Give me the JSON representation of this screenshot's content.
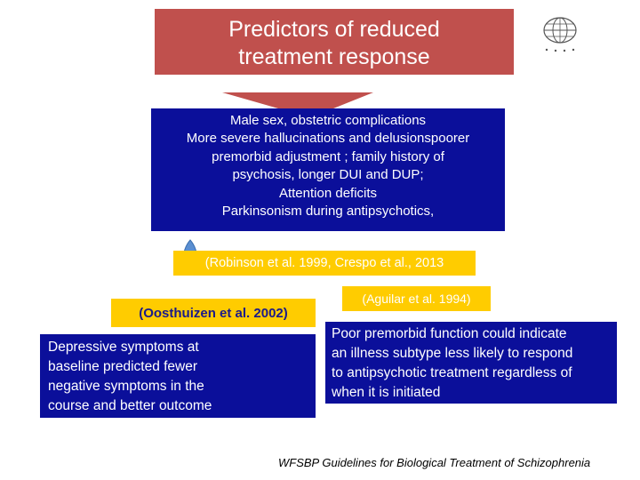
{
  "colors": {
    "title_arrow": "#c0504d",
    "box_blue": "#0b0f9a",
    "citation_yellow": "#ffcc00",
    "pin_blue": "#5b8fd1"
  },
  "title": {
    "line1": "Predictors of reduced",
    "line2": "treatment response"
  },
  "logo": {
    "icon": "globe-logo-icon"
  },
  "predictors": {
    "lines": [
      "Male sex, obstetric complications",
      "More severe hallucinations and delusionspoorer",
      "premorbid adjustment ; family history of",
      "psychosis, longer DUI and DUP;",
      "Attention deficits",
      "Parkinsonism during antipsychotics,"
    ]
  },
  "citations": {
    "robinson": "(Robinson et al. 1999, Crespo et al., 2013",
    "aguilar": "(Aguilar et al. 1994)",
    "oosthuizen": "(Oosthuizen et al. 2002)"
  },
  "left_box": {
    "lines": [
      "Depressive symptoms at",
      "baseline predicted fewer",
      "negative symptoms in the",
      "course and better outcome"
    ]
  },
  "right_box": {
    "lines": [
      "Poor premorbid function could indicate",
      "an illness subtype less likely to respond",
      "to antipsychotic treatment regardless of",
      "when it is initiated"
    ]
  },
  "footer": "WFSBP Guidelines for Biological Treatment of  Schizophrenia"
}
